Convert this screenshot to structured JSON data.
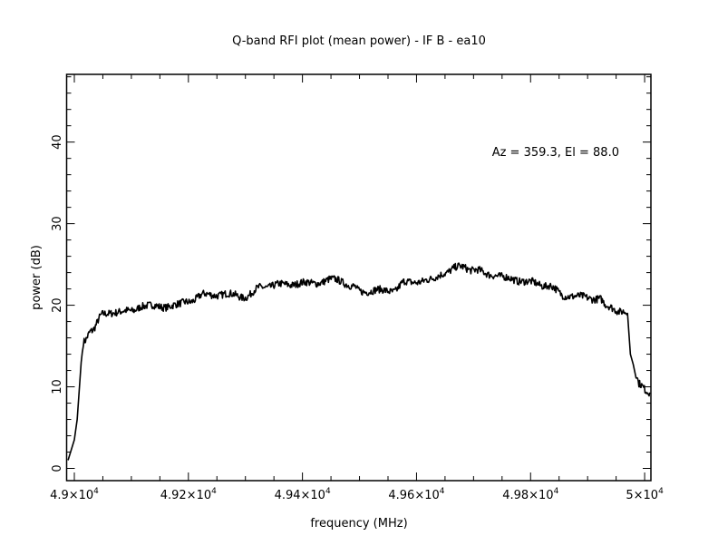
{
  "chart_data": {
    "type": "line",
    "title": "Q-band RFI plot (mean power) - IF B - ea10",
    "xlabel": "frequency (MHz)",
    "ylabel": "power (dB)",
    "annotation": "Az = 359.3, El = 88.0",
    "xlim": [
      48986.5,
      50011
    ],
    "ylim": [
      -1.5,
      48.3
    ],
    "x_ticks": [
      {
        "value": 49000,
        "label": "4.9×10",
        "exp": "4"
      },
      {
        "value": 49200,
        "label": "4.92×10",
        "exp": "4"
      },
      {
        "value": 49400,
        "label": "4.94×10",
        "exp": "4"
      },
      {
        "value": 49600,
        "label": "4.96×10",
        "exp": "4"
      },
      {
        "value": 49800,
        "label": "4.98×10",
        "exp": "4"
      },
      {
        "value": 50000,
        "label": "5×10",
        "exp": "4"
      }
    ],
    "x_minor_step": 50,
    "y_ticks": [
      {
        "value": 0,
        "label": "0"
      },
      {
        "value": 10,
        "label": "10"
      },
      {
        "value": 20,
        "label": "20"
      },
      {
        "value": 30,
        "label": "30"
      },
      {
        "value": 40,
        "label": "40"
      }
    ],
    "y_minor_step": 2,
    "grid": false,
    "series": [
      {
        "name": "mean power",
        "color": "#000000",
        "x": [
          48989,
          49000,
          49005,
          49012,
          49016,
          49030,
          49050,
          49080,
          49100,
          49120,
          49150,
          49180,
          49200,
          49230,
          49280,
          49300,
          49330,
          49380,
          49430,
          49460,
          49490,
          49500,
          49530,
          49560,
          49580,
          49620,
          49650,
          49680,
          49700,
          49730,
          49760,
          49800,
          49830,
          49860,
          49890,
          49920,
          49935,
          49960,
          49970,
          49975,
          49985,
          49990,
          50009
        ],
        "y": [
          1,
          3.5,
          6,
          13,
          15.5,
          17,
          18.8,
          19.3,
          19.2,
          20,
          19.8,
          20,
          20.5,
          21.3,
          21.3,
          21,
          22.3,
          22.6,
          22.8,
          23.2,
          22.2,
          21.7,
          21.8,
          21.8,
          22.8,
          23.0,
          24,
          24.8,
          24.3,
          23.8,
          23.3,
          22.8,
          22.4,
          21.2,
          21.0,
          20.8,
          19.8,
          19.3,
          19.0,
          14,
          11.5,
          10.5,
          9.3
        ]
      }
    ]
  }
}
